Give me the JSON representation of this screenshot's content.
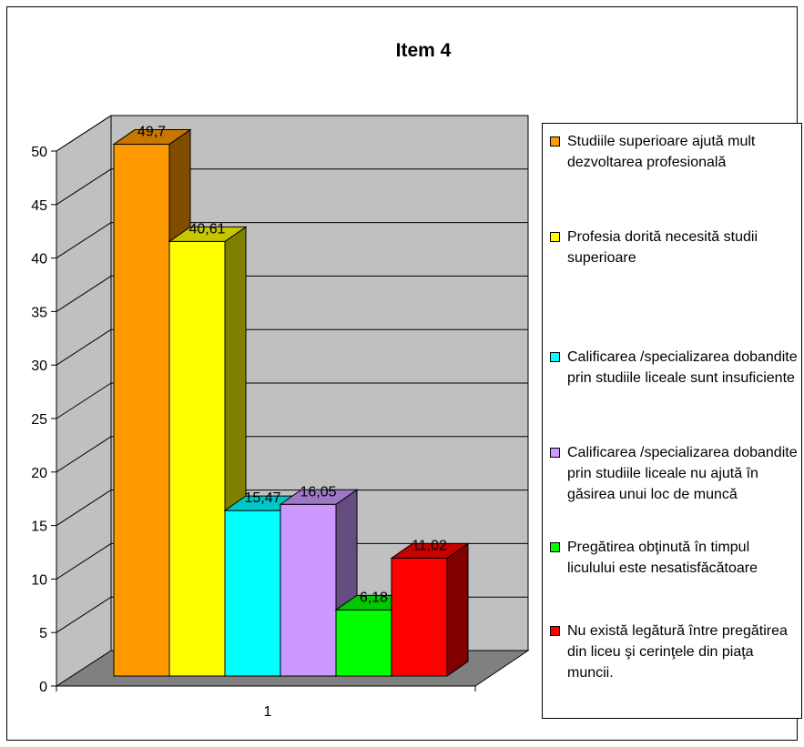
{
  "chart_data": {
    "type": "bar",
    "title": "Item 4",
    "categories": [
      "1"
    ],
    "yticks": [
      "0",
      "5",
      "10",
      "15",
      "20",
      "25",
      "30",
      "35",
      "40",
      "45",
      "50"
    ],
    "ylim": [
      0,
      50
    ],
    "grid": true,
    "legend_position": "right",
    "series": [
      {
        "name": "Studiile superioare ajută mult dezvoltarea profesională",
        "value": 49.7,
        "label": "49,7",
        "color": "#ff9900"
      },
      {
        "name": "Profesia dorită necesită studii superioare",
        "value": 40.61,
        "label": "40,61",
        "color": "#ffff00"
      },
      {
        "name": "Calificarea /specializarea dobandite prin studiile liceale sunt insuficiente",
        "value": 15.47,
        "label": "15,47",
        "color": "#00ffff"
      },
      {
        "name": "Calificarea /specializarea dobandite prin studiile liceale nu ajută în găsirea unui loc de muncă",
        "value": 16.05,
        "label": "16,05",
        "color": "#cc99ff"
      },
      {
        "name": "Pregătirea obţinută în timpul liculului este nesatisfăcătoare",
        "value": 6.18,
        "label": "6,18",
        "color": "#00ff00"
      },
      {
        "name": "Nu există legătură între pregătirea din liceu şi cerinţele din piaţa muncii.",
        "value": 11.02,
        "label": "11,02",
        "color": "#ff0000"
      }
    ]
  }
}
